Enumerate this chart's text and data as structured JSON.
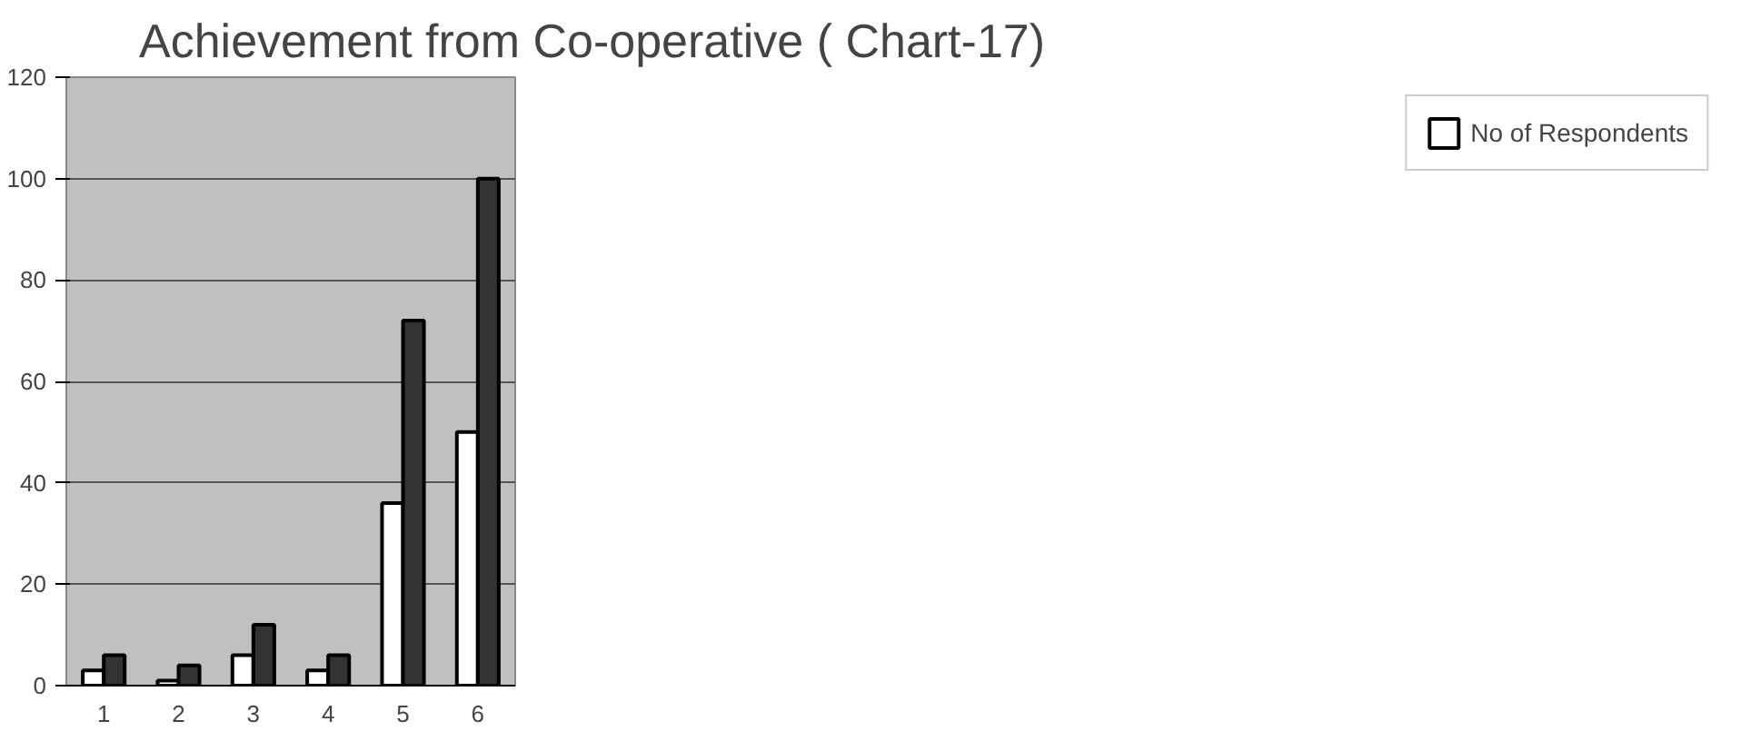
{
  "chart_data": {
    "type": "bar",
    "title": "Achievement from Co-operative ( Chart-17)",
    "categories": [
      "1",
      "2",
      "3",
      "4",
      "5",
      "6"
    ],
    "series": [
      {
        "name": "No of Respondents",
        "color": "#ffffff",
        "values": [
          3,
          1,
          6,
          3,
          36,
          50
        ]
      },
      {
        "color": "#333333",
        "values": [
          6,
          4,
          12,
          6,
          72,
          100
        ]
      }
    ],
    "ylim": [
      0,
      120
    ],
    "yticks": [
      0,
      20,
      40,
      60,
      80,
      100,
      120
    ],
    "grid": "y",
    "legend": "right"
  }
}
